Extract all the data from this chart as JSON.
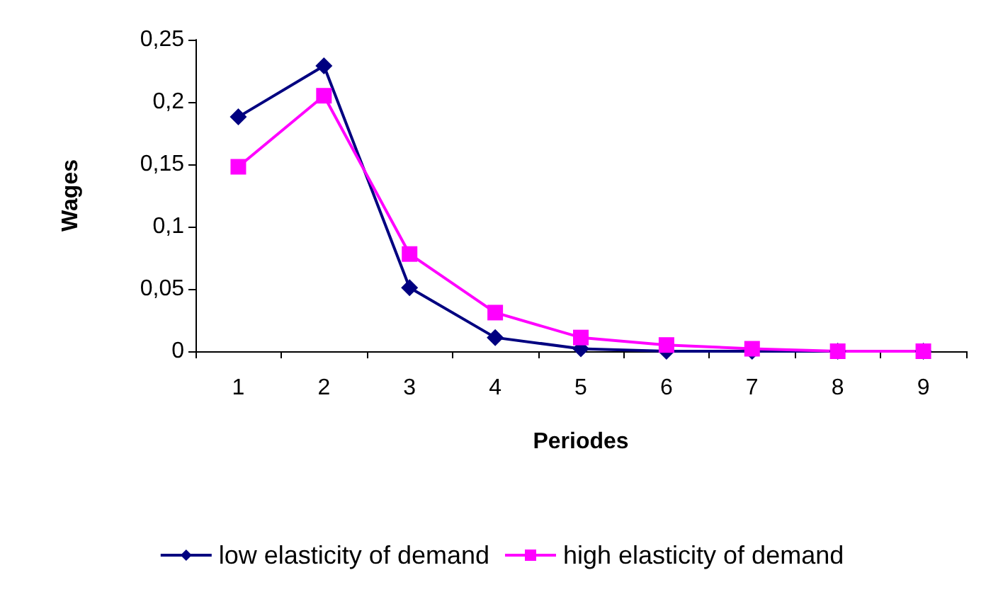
{
  "chart_data": {
    "type": "line",
    "xlabel": "Periodes",
    "ylabel": "Wages",
    "categories": [
      "1",
      "2",
      "3",
      "4",
      "5",
      "6",
      "7",
      "8",
      "9"
    ],
    "series": [
      {
        "name": "low elasticity of demand",
        "color": "#000080",
        "marker": "diamond",
        "values": [
          0.188,
          0.229,
          0.051,
          0.011,
          0.002,
          0,
          0,
          0,
          0
        ]
      },
      {
        "name": "high elasticity of demand",
        "color": "#ff00ff",
        "marker": "square",
        "values": [
          0.148,
          0.205,
          0.078,
          0.031,
          0.011,
          0.005,
          0.002,
          0,
          0
        ]
      }
    ],
    "ylim": [
      0,
      0.25
    ],
    "yticks": [
      {
        "value": 0,
        "label": "0"
      },
      {
        "value": 0.05,
        "label": "0,05"
      },
      {
        "value": 0.1,
        "label": "0,1"
      },
      {
        "value": 0.15,
        "label": "0,15"
      },
      {
        "value": 0.2,
        "label": "0,2"
      },
      {
        "value": 0.25,
        "label": "0,25"
      }
    ],
    "grid": false,
    "legend": "bottom",
    "line_style": "solid"
  }
}
